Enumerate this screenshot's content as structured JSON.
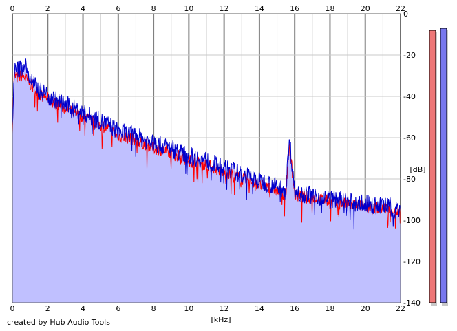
{
  "chart_data": {
    "type": "line",
    "title": "",
    "xlabel": "[kHz]",
    "ylabel": "[dB]",
    "x_range": [
      0,
      22
    ],
    "y_range": [
      -140,
      0
    ],
    "x_ticks": [
      0,
      2,
      4,
      6,
      8,
      10,
      12,
      14,
      16,
      18,
      20,
      22
    ],
    "y_ticks": [
      0,
      -20,
      -40,
      -60,
      -80,
      -100,
      -120,
      -140
    ],
    "x_tick_labels": [
      "0",
      "2",
      "4",
      "6",
      "8",
      "10",
      "12",
      "14",
      "16",
      "18",
      "20",
      "22"
    ],
    "y_tick_labels": [
      "0",
      "-20",
      "-40",
      "-60",
      "-80",
      "-100",
      "-120",
      "-140"
    ],
    "grid": true,
    "series": [
      {
        "color": "#ff0000",
        "x": [
          0.0,
          0.1,
          0.3,
          0.5,
          0.7,
          0.9,
          1.2,
          1.5,
          2.0,
          2.5,
          3.0,
          3.5,
          4.0,
          4.5,
          5.0,
          5.5,
          6.0,
          6.5,
          7.0,
          7.5,
          8.0,
          8.5,
          9.0,
          9.5,
          10.0,
          10.5,
          11.0,
          11.5,
          12.0,
          12.5,
          13.0,
          13.5,
          14.0,
          14.5,
          15.0,
          15.5,
          15.7,
          16.0,
          16.5,
          17.0,
          17.5,
          18.0,
          18.5,
          19.0,
          19.5,
          20.0,
          20.5,
          21.0,
          21.5,
          22.0
        ],
        "values": [
          -55,
          -30,
          -31,
          -30,
          -31,
          -33,
          -36,
          -39,
          -41,
          -44,
          -46,
          -48,
          -50,
          -52,
          -54,
          -56,
          -59,
          -60,
          -61,
          -63,
          -65,
          -66,
          -68,
          -69,
          -71,
          -72,
          -73,
          -75,
          -77,
          -78,
          -80,
          -81,
          -83,
          -84,
          -86,
          -87,
          -62,
          -88,
          -89,
          -89,
          -90,
          -91,
          -92,
          -92,
          -93,
          -93,
          -94,
          -94,
          -95,
          -96
        ]
      },
      {
        "color": "#0000cc",
        "x": [
          0.0,
          0.1,
          0.3,
          0.5,
          0.7,
          0.9,
          1.2,
          1.5,
          2.0,
          2.5,
          3.0,
          3.5,
          4.0,
          4.5,
          5.0,
          5.5,
          6.0,
          6.5,
          7.0,
          7.5,
          8.0,
          8.5,
          9.0,
          9.5,
          10.0,
          10.5,
          11.0,
          11.5,
          12.0,
          12.5,
          13.0,
          13.5,
          14.0,
          14.5,
          15.0,
          15.5,
          15.7,
          16.0,
          16.5,
          17.0,
          17.5,
          18.0,
          18.5,
          19.0,
          19.5,
          20.0,
          20.5,
          21.0,
          21.5,
          22.0
        ],
        "values": [
          -56,
          -28,
          -27,
          -26,
          -24,
          -30,
          -34,
          -37,
          -39,
          -42,
          -44,
          -46,
          -48,
          -50,
          -52,
          -54,
          -57,
          -58,
          -59,
          -61,
          -63,
          -64,
          -65,
          -67,
          -69,
          -70,
          -71,
          -73,
          -75,
          -76,
          -78,
          -79,
          -81,
          -82,
          -84,
          -85,
          -60,
          -86,
          -87,
          -88,
          -89,
          -90,
          -90,
          -91,
          -92,
          -92,
          -93,
          -93,
          -94,
          -95
        ]
      }
    ],
    "level_meters": [
      {
        "color": "#ee7777",
        "value": -8
      },
      {
        "color": "#7777ee",
        "value": -7
      }
    ],
    "colors": {
      "plot_background": "#ffffff",
      "fill": "#c0c0ff",
      "major_grid": "#808080",
      "minor_grid": "#c8c8c8"
    }
  },
  "footer": {
    "credit": "created by Hub Audio Tools"
  }
}
